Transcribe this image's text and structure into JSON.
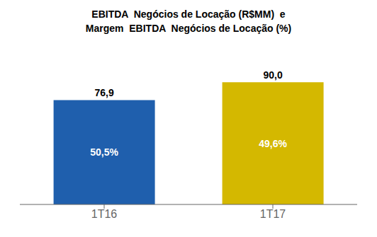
{
  "chart_data": {
    "type": "bar",
    "title": "EBITDA  Negócios de Locação (R$MM)  e\nMargem  EBITDA  Negócios de Locação (%)",
    "categories": [
      "1T16",
      "1T17"
    ],
    "values": [
      76.9,
      90.0
    ],
    "value_labels": [
      "76,9",
      "90,0"
    ],
    "data_labels": true,
    "annotations": [
      "50,5%",
      "49,6%"
    ],
    "colors": [
      "#1F5FAD",
      "#D4B800"
    ],
    "ylim": [
      0,
      110
    ],
    "grid": false,
    "tick_labels": "x"
  }
}
